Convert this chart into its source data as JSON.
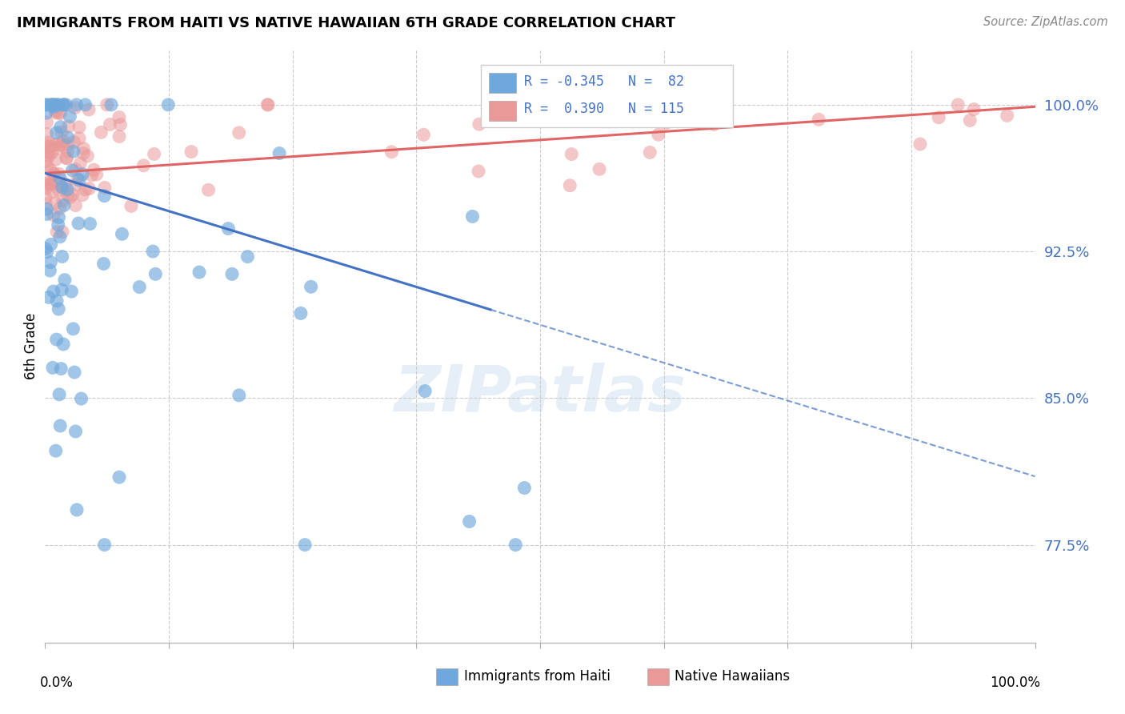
{
  "title": "IMMIGRANTS FROM HAITI VS NATIVE HAWAIIAN 6TH GRADE CORRELATION CHART",
  "source": "Source: ZipAtlas.com",
  "ylabel": "6th Grade",
  "ytick_labels": [
    "77.5%",
    "85.0%",
    "92.5%",
    "100.0%"
  ],
  "ytick_values": [
    0.775,
    0.85,
    0.925,
    1.0
  ],
  "xlim": [
    0.0,
    1.0
  ],
  "ylim": [
    0.725,
    1.028
  ],
  "color_haiti": "#6fa8dc",
  "color_hawaiian": "#ea9999",
  "color_line_haiti": "#4472c4",
  "color_line_hawaiian": "#e06666",
  "color_tick_label": "#4472c4",
  "grid_color": "#cccccc",
  "legend_text_color": "#4472c4"
}
